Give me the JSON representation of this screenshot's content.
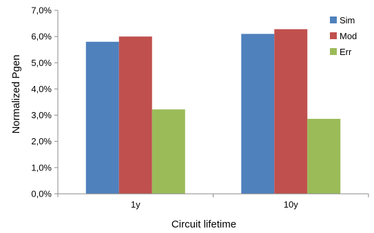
{
  "chart_data": {
    "type": "bar",
    "categories": [
      "1y",
      "10y"
    ],
    "series": [
      {
        "name": "Sim",
        "values": [
          5.8,
          6.1
        ],
        "color": "#4F81BD"
      },
      {
        "name": "Mod",
        "values": [
          6.0,
          6.28
        ],
        "color": "#C0504D"
      },
      {
        "name": "Err",
        "values": [
          3.22,
          2.86
        ],
        "color": "#9BBB59"
      }
    ],
    "title": "",
    "xlabel": "Circuit lifetime",
    "ylabel": "Normalized Pgen",
    "ylim": [
      0,
      7
    ],
    "yticks": [
      0,
      1,
      2,
      3,
      4,
      5,
      6,
      7
    ],
    "ytick_labels": [
      "0,0%",
      "1,0%",
      "2,0%",
      "3,0%",
      "4,0%",
      "5,0%",
      "6,0%",
      "7,0%"
    ],
    "grid": false,
    "legend_position": "top-right"
  }
}
